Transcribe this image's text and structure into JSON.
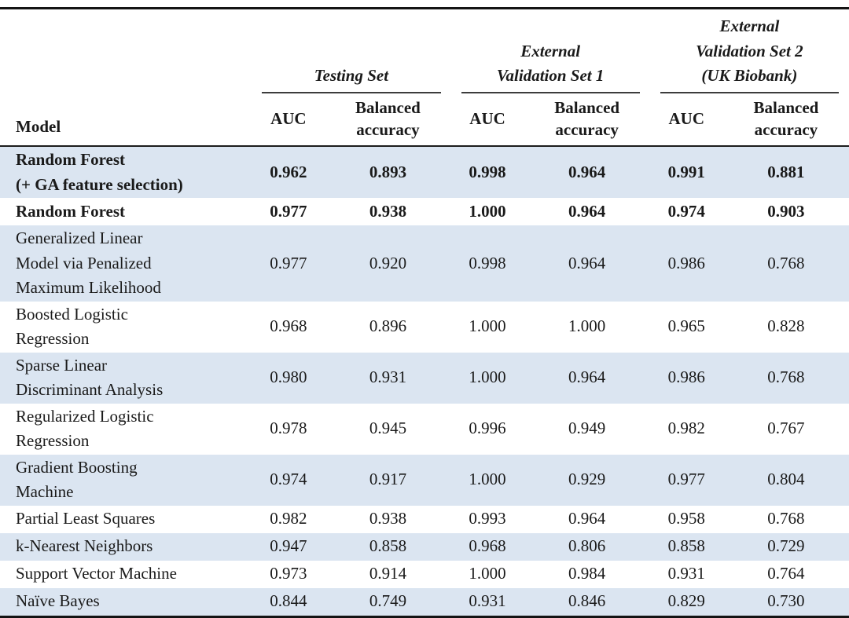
{
  "colors": {
    "row_highlight": "#dbe5f1",
    "row_base": "#ffffff",
    "rule": "#141414",
    "text": "#1a1a1a"
  },
  "table": {
    "model_header": "Model",
    "groups": [
      {
        "label": "Testing Set"
      },
      {
        "label": "External\nValidation Set 1"
      },
      {
        "label": "External\nValidation Set 2\n(UK Biobank)"
      }
    ],
    "subheaders": [
      "AUC",
      "Balanced\naccuracy"
    ],
    "rows": [
      {
        "model": "Random Forest\n(+ GA feature selection)",
        "bold": true,
        "values": [
          "0.962",
          "0.893",
          "0.998",
          "0.964",
          "0.991",
          "0.881"
        ]
      },
      {
        "model": "Random Forest",
        "bold": true,
        "values": [
          "0.977",
          "0.938",
          "1.000",
          "0.964",
          "0.974",
          "0.903"
        ]
      },
      {
        "model": "Generalized Linear\nModel via Penalized\nMaximum Likelihood",
        "bold": false,
        "values": [
          "0.977",
          "0.920",
          "0.998",
          "0.964",
          "0.986",
          "0.768"
        ]
      },
      {
        "model": "Boosted Logistic\nRegression",
        "bold": false,
        "values": [
          "0.968",
          "0.896",
          "1.000",
          "1.000",
          "0.965",
          "0.828"
        ]
      },
      {
        "model": "Sparse Linear\nDiscriminant Analysis",
        "bold": false,
        "values": [
          "0.980",
          "0.931",
          "1.000",
          "0.964",
          "0.986",
          "0.768"
        ]
      },
      {
        "model": "Regularized Logistic\nRegression",
        "bold": false,
        "values": [
          "0.978",
          "0.945",
          "0.996",
          "0.949",
          "0.982",
          "0.767"
        ]
      },
      {
        "model": "Gradient Boosting\nMachine",
        "bold": false,
        "values": [
          "0.974",
          "0.917",
          "1.000",
          "0.929",
          "0.977",
          "0.804"
        ]
      },
      {
        "model": "Partial Least Squares",
        "bold": false,
        "values": [
          "0.982",
          "0.938",
          "0.993",
          "0.964",
          "0.958",
          "0.768"
        ]
      },
      {
        "model": "k-Nearest Neighbors",
        "bold": false,
        "values": [
          "0.947",
          "0.858",
          "0.968",
          "0.806",
          "0.858",
          "0.729"
        ]
      },
      {
        "model": "Support Vector Machine",
        "bold": false,
        "values": [
          "0.973",
          "0.914",
          "1.000",
          "0.984",
          "0.931",
          "0.764"
        ]
      },
      {
        "model": "Naïve Bayes",
        "bold": false,
        "values": [
          "0.844",
          "0.749",
          "0.931",
          "0.846",
          "0.829",
          "0.730"
        ]
      }
    ]
  }
}
